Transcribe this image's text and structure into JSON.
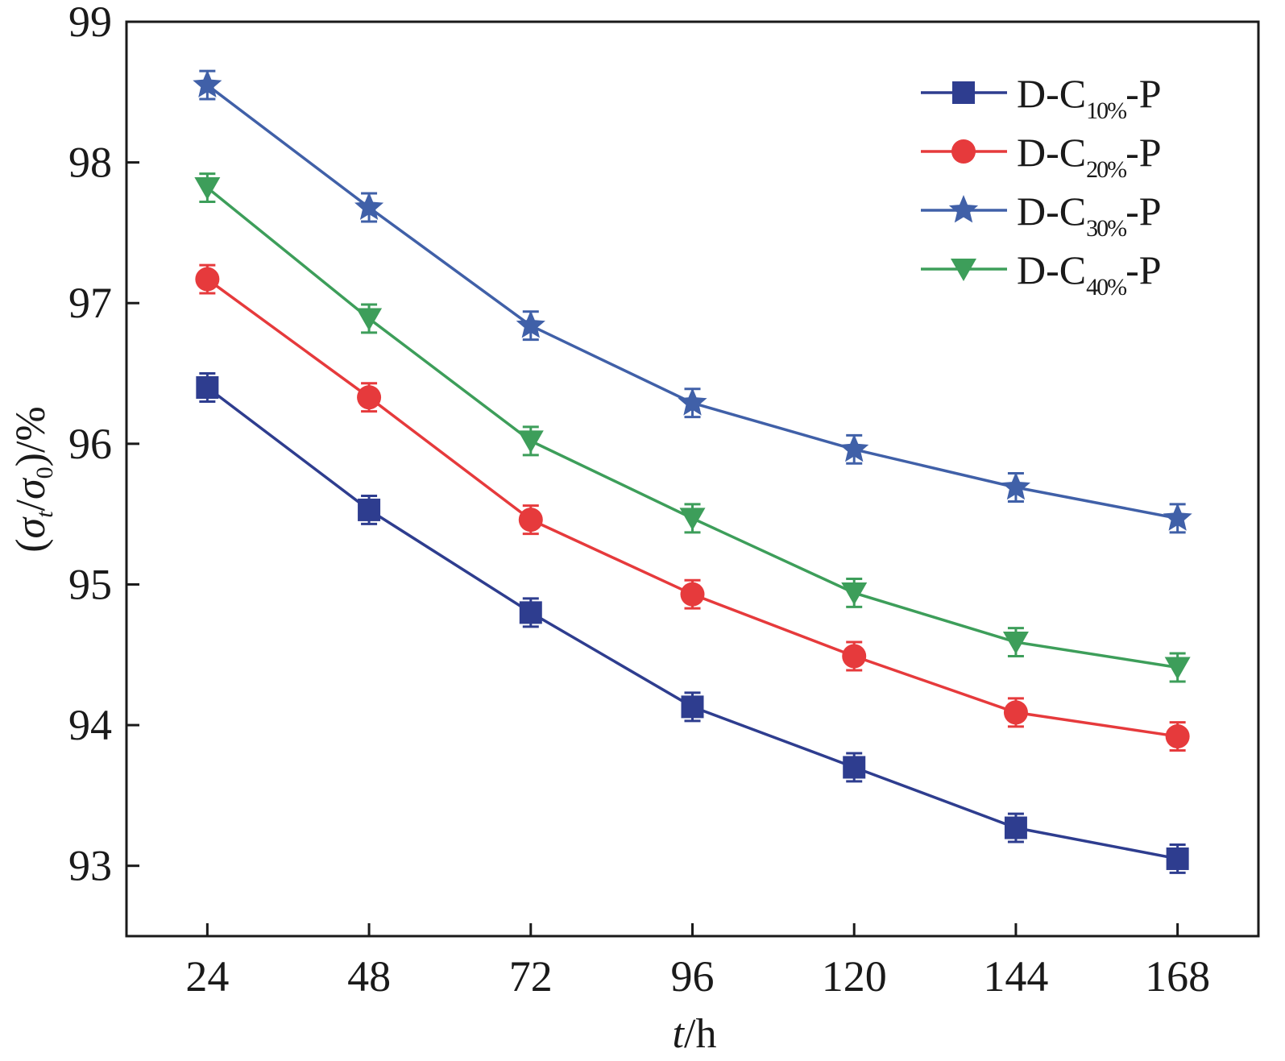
{
  "chart_data": {
    "type": "line",
    "title": "",
    "xlabel": {
      "var": "t",
      "unit": "/h"
    },
    "ylabel": {
      "open": "(",
      "sigma_t": "σ",
      "t_sub": "t",
      "slash": "/",
      "sigma_0": "σ",
      "zero_sub": "0",
      "close": ")/%"
    },
    "x": [
      24,
      48,
      72,
      96,
      120,
      144,
      168
    ],
    "xticks": [
      "24",
      "48",
      "72",
      "96",
      "120",
      "144",
      "168"
    ],
    "yticks": [
      "93",
      "94",
      "95",
      "96",
      "97",
      "98",
      "99"
    ],
    "xlim": [
      12,
      180
    ],
    "ylim": [
      92.5,
      99
    ],
    "grid": false,
    "legend_position": "top-right",
    "error": 0.1,
    "series": [
      {
        "name": "D-C10%-P",
        "prefix": "D-C",
        "sub": "10%",
        "suffix": "-P",
        "marker": "square",
        "color": "#2e3d8f",
        "values": [
          96.4,
          95.53,
          94.8,
          94.13,
          93.7,
          93.27,
          93.05
        ]
      },
      {
        "name": "D-C20%-P",
        "prefix": "D-C",
        "sub": "20%",
        "suffix": "-P",
        "marker": "circle",
        "color": "#e63a3c",
        "values": [
          97.17,
          96.33,
          95.46,
          94.93,
          94.49,
          94.09,
          93.92
        ]
      },
      {
        "name": "D-C30%-P",
        "prefix": "D-C",
        "sub": "30%",
        "suffix": "-P",
        "marker": "star",
        "color": "#4060a8",
        "values": [
          98.55,
          97.68,
          96.84,
          96.29,
          95.96,
          95.69,
          95.47
        ]
      },
      {
        "name": "D-C40%-P",
        "prefix": "D-C",
        "sub": "40%",
        "suffix": "-P",
        "marker": "triangle-down",
        "color": "#3d9e5a",
        "values": [
          97.82,
          96.89,
          96.02,
          95.47,
          94.94,
          94.59,
          94.41
        ]
      }
    ]
  }
}
